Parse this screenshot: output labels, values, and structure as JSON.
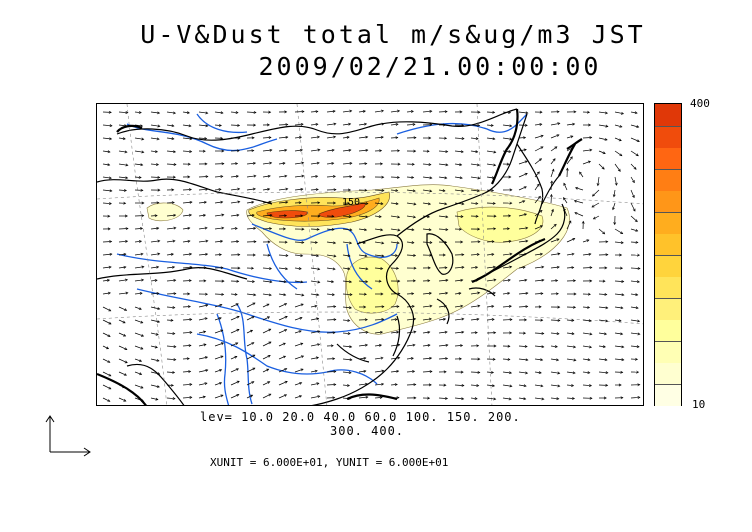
{
  "title": {
    "line1": "U-V&Dust total m/s&ug/m3 JST",
    "line2": "2009/02/21.00:00:00"
  },
  "colorbar": {
    "max_label": "400",
    "min_label": "10",
    "colors": [
      "#ffffe4",
      "#ffffd0",
      "#ffffb4",
      "#ffff9c",
      "#fff07a",
      "#ffe45a",
      "#ffd43c",
      "#ffc22a",
      "#ffad1e",
      "#ff9618",
      "#ff7e14",
      "#ff6612",
      "#f04c0c",
      "#e03808"
    ]
  },
  "levels": {
    "line1": "lev= 10.0 20.0 40.0 60.0 100. 150. 200.",
    "line2": "300. 400."
  },
  "contour_label": "150",
  "units_text": "XUNIT = 6.000E+01, YUNIT = 6.000E+01",
  "colors": {
    "coastline": "#000000",
    "rivers": "#1a5fe0",
    "fill_low": "#ffffd0",
    "fill_high": "#e03808"
  }
}
